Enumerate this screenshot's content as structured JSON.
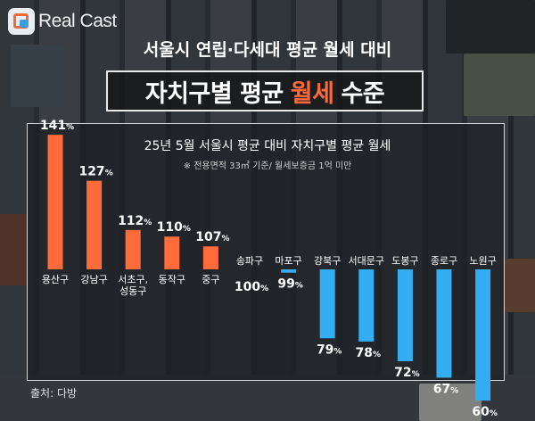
{
  "brand": {
    "name": "Real Cast"
  },
  "header": {
    "subtitle": "서울시 연립·다세대 평균 월세 대비",
    "title_before": "자치구별 평균",
    "title_highlight": "월세",
    "title_after": "수준"
  },
  "source": "출처: 다방",
  "colors": {
    "above": "#ff6b3a",
    "below": "#33aef2",
    "highlight": "#ff6a3d"
  },
  "chart_data": {
    "type": "bar",
    "title": "25년 5월 서울시 평균 대비 자치구별 평균 월세",
    "subtitle": "※ 전용면적 33㎡ 기준/ 월세보증금 1억 미만",
    "baseline": 100,
    "unit": "%",
    "categories": [
      "용산구",
      "강남구",
      "서초구,\n성동구",
      "동작구",
      "중구",
      "송파구",
      "마포구",
      "강북구",
      "서대문구",
      "도봉구",
      "종로구",
      "노원구"
    ],
    "values": [
      141,
      127,
      112,
      110,
      107,
      100,
      99,
      79,
      78,
      72,
      67,
      60
    ]
  }
}
